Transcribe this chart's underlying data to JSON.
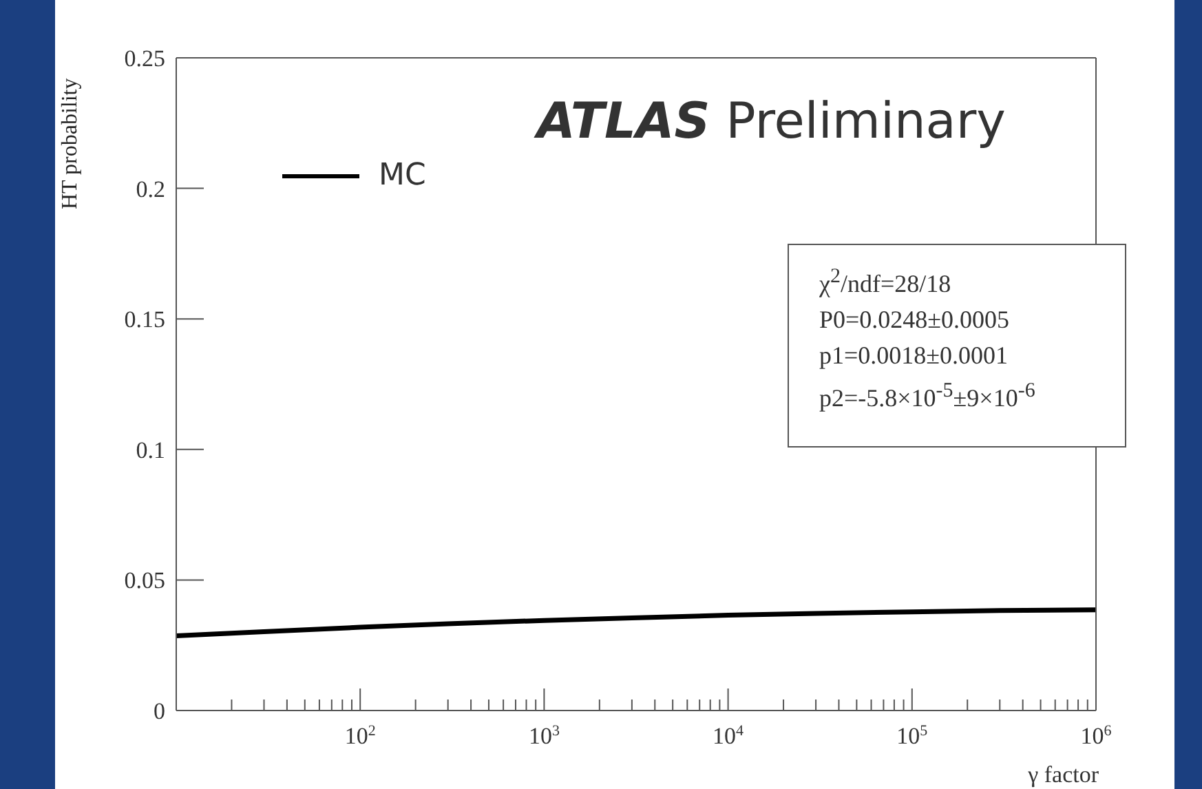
{
  "chart_data": {
    "type": "line",
    "title": "ATLAS Preliminary",
    "xlabel": "γ factor",
    "ylabel": "HT probability",
    "x": [
      10,
      30,
      100,
      300,
      1000,
      3000,
      10000,
      30000,
      100000,
      300000,
      1000000
    ],
    "series": [
      {
        "name": "MC",
        "color": "#000000",
        "values": [
          0.0286,
          0.0302,
          0.0319,
          0.0332,
          0.0345,
          0.0355,
          0.0365,
          0.0372,
          0.0378,
          0.0383,
          0.0386
        ]
      }
    ],
    "log": "x",
    "xlim": [
      10,
      1000000
    ],
    "xticks": [
      {
        "value": 20,
        "label": null
      },
      {
        "value": 30,
        "label": null
      },
      {
        "value": 40,
        "label": null
      },
      {
        "value": 50,
        "label": null
      },
      {
        "value": 60,
        "label": null
      },
      {
        "value": 70,
        "label": null
      },
      {
        "value": 80,
        "label": null
      },
      {
        "value": 90,
        "label": null
      },
      {
        "value": 100,
        "label": "10$^{2}$"
      },
      {
        "value": 200,
        "label": null
      },
      {
        "value": 300,
        "label": null
      },
      {
        "value": 400,
        "label": null
      },
      {
        "value": 500,
        "label": null
      },
      {
        "value": 600,
        "label": null
      },
      {
        "value": 700,
        "label": null
      },
      {
        "value": 800,
        "label": null
      },
      {
        "value": 900,
        "label": null
      },
      {
        "value": 1000,
        "label": "10$^{3}$"
      },
      {
        "value": 2000,
        "label": null
      },
      {
        "value": 3000,
        "label": null
      },
      {
        "value": 4000,
        "label": null
      },
      {
        "value": 5000,
        "label": null
      },
      {
        "value": 6000,
        "label": null
      },
      {
        "value": 7000,
        "label": null
      },
      {
        "value": 8000,
        "label": null
      },
      {
        "value": 9000,
        "label": null
      },
      {
        "value": 10000,
        "label": "10$^{4}$"
      },
      {
        "value": 20000,
        "label": null
      },
      {
        "value": 30000,
        "label": null
      },
      {
        "value": 40000,
        "label": null
      },
      {
        "value": 50000,
        "label": null
      },
      {
        "value": 60000,
        "label": null
      },
      {
        "value": 70000,
        "label": null
      },
      {
        "value": 80000,
        "label": null
      },
      {
        "value": 90000,
        "label": null
      },
      {
        "value": 100000,
        "label": "10$^{5}$"
      },
      {
        "value": 200000,
        "label": null
      },
      {
        "value": 300000,
        "label": null
      },
      {
        "value": 400000,
        "label": null
      },
      {
        "value": 500000,
        "label": null
      },
      {
        "value": 600000,
        "label": null
      },
      {
        "value": 700000,
        "label": null
      },
      {
        "value": 800000,
        "label": null
      },
      {
        "value": 900000,
        "label": null
      },
      {
        "value": 1000000,
        "label": "10$^{6}$"
      }
    ],
    "ylim": [
      0,
      0.25
    ],
    "yticks": [
      0,
      0.05,
      0.1,
      0.15,
      0.2,
      0.25
    ],
    "grid": false,
    "legend": "top left",
    "line_style": "solid",
    "annotations": [
      "χ$^{2}$/ndf=28/18",
      "P0=0.0248±0.0005",
      "p1=0.0018±0.0001",
      "p2=-5.8×10$^{-5}$±9×10$^{-6}$"
    ]
  }
}
